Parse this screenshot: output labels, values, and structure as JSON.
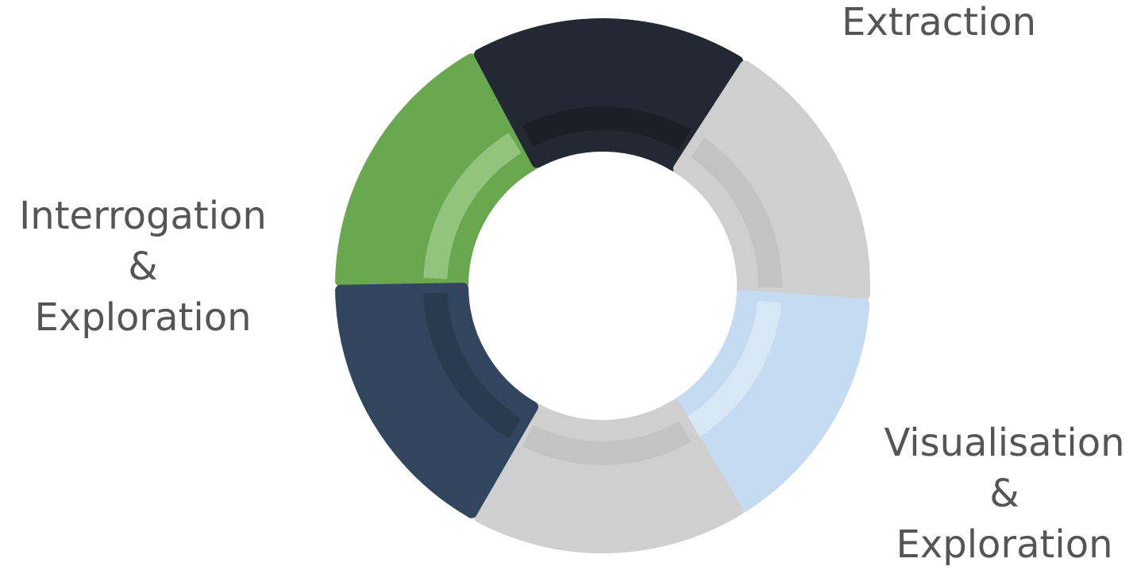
{
  "colors": {
    "green": "#6aa84f",
    "green_inner": "#93c47d",
    "dark": "#232933",
    "dark_inner": "#1b2028",
    "navy": "#31465e",
    "navy_inner": "#283b4f",
    "gray": "#cfcfcf",
    "gray_inner": "#c3c3c3",
    "light_blue": "#c5dbf2",
    "light_blue_inner": "#d8e7f6",
    "label_text": "#555555"
  },
  "segments": [
    {
      "id": "green",
      "color": "green",
      "inner": "green_inner",
      "start_deg": 181,
      "end_deg": 240
    },
    {
      "id": "dark",
      "color": "dark",
      "inner": "dark_inner",
      "start_deg": 242,
      "end_deg": 301
    },
    {
      "id": "right-gray",
      "color": "gray",
      "inner": "gray_inner",
      "start_deg": 303,
      "end_deg": 362
    },
    {
      "id": "light-blue",
      "color": "light_blue",
      "inner": "light_blue_inner",
      "start_deg": 364,
      "end_deg": 423
    },
    {
      "id": "left-gray",
      "color": "gray",
      "inner": "gray_inner",
      "start_deg": 59,
      "end_deg": 118
    },
    {
      "id": "navy",
      "color": "navy",
      "inner": "navy_inner",
      "start_deg": 120,
      "end_deg": 179
    }
  ],
  "labels": {
    "extraction": [
      "Extraction"
    ],
    "interrogation": [
      "Interrogation",
      "&",
      "Exploration"
    ],
    "visualisation": [
      "Visualisation",
      "&",
      "Exploration"
    ]
  }
}
